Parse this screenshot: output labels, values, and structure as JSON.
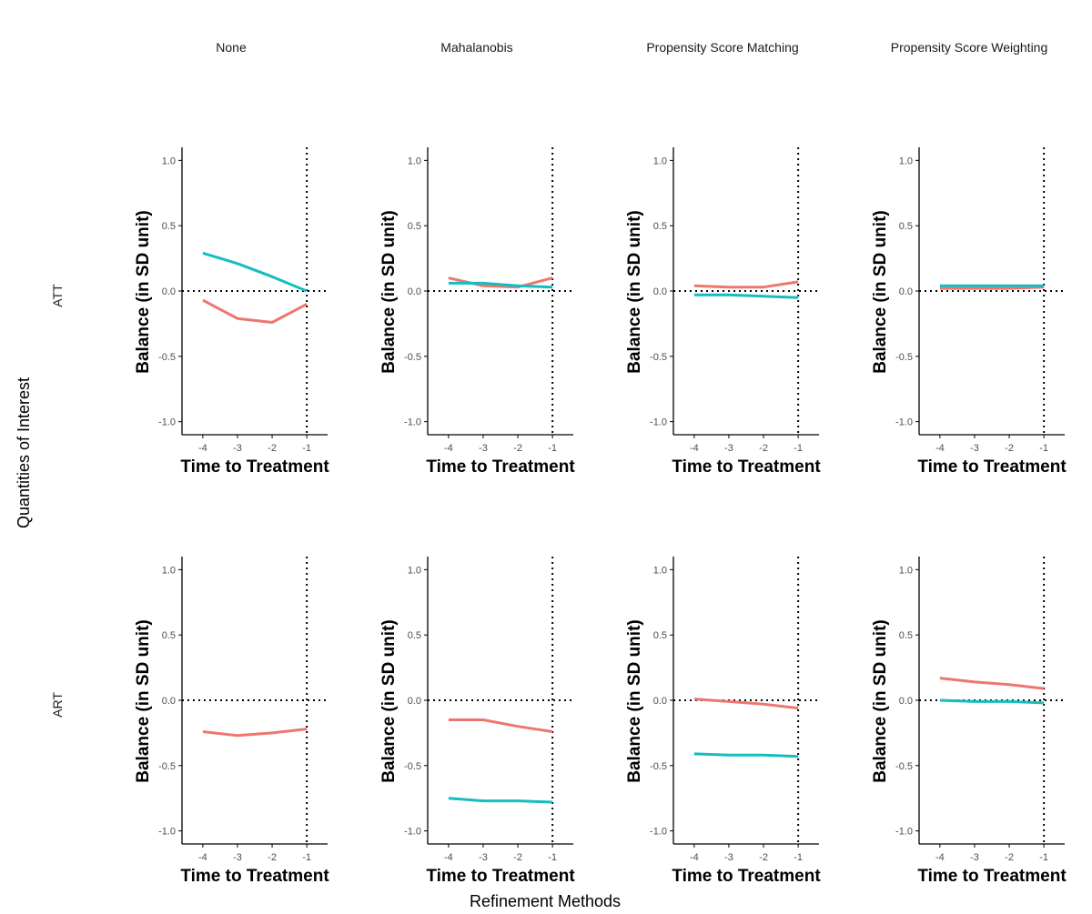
{
  "labels": {
    "row_axis_title": "Quantities of Interest",
    "col_axis_title": "Refinement Methods"
  },
  "colors": {
    "series_1": "#ED776E",
    "series_2": "#14BDBF",
    "axis": "#000000",
    "tick_text": "#4d4d4d"
  },
  "chart_data": {
    "type": "line",
    "column_labels": [
      "None",
      "Mahalanobis",
      "Propensity Score Matching",
      "Propensity Score Weighting"
    ],
    "row_labels": [
      "ATT",
      "ART"
    ],
    "xlabel": "Time to Treatment",
    "ylabel": "Balance (in SD unit)",
    "x": [
      -4,
      -3,
      -2,
      -1
    ],
    "xlim": [
      -4.6,
      -0.4
    ],
    "ylim": [
      -1.1,
      1.1
    ],
    "x_ticks": [
      -4,
      -3,
      -2,
      -1
    ],
    "y_ticks": [
      1.0,
      0.5,
      0.0,
      -0.5,
      -1.0
    ],
    "x_tick_labels": [
      "-4",
      "-3",
      "-2",
      "-1"
    ],
    "y_tick_labels": [
      "1.0",
      "0.5",
      "0.0",
      "-0.5",
      "-1.0"
    ],
    "reference_lines": {
      "horizontal_y": 0,
      "vertical_x": -1,
      "style": "dotted"
    },
    "panels": [
      {
        "row": "ATT",
        "col": "None",
        "series": [
          {
            "name": "series_1",
            "values": [
              -0.07,
              -0.21,
              -0.24,
              -0.1
            ]
          },
          {
            "name": "series_2",
            "values": [
              0.29,
              0.21,
              0.11,
              0.0
            ]
          }
        ]
      },
      {
        "row": "ATT",
        "col": "Mahalanobis",
        "series": [
          {
            "name": "series_1",
            "values": [
              0.1,
              0.04,
              0.03,
              0.1
            ]
          },
          {
            "name": "series_2",
            "values": [
              0.06,
              0.06,
              0.04,
              0.03
            ]
          }
        ]
      },
      {
        "row": "ATT",
        "col": "Propensity Score Matching",
        "series": [
          {
            "name": "series_1",
            "values": [
              0.04,
              0.03,
              0.03,
              0.07
            ]
          },
          {
            "name": "series_2",
            "values": [
              -0.03,
              -0.03,
              -0.04,
              -0.05
            ]
          }
        ]
      },
      {
        "row": "ATT",
        "col": "Propensity Score Weighting",
        "series": [
          {
            "name": "series_1",
            "values": [
              0.02,
              0.02,
              0.02,
              0.03
            ]
          },
          {
            "name": "series_2",
            "values": [
              0.04,
              0.04,
              0.04,
              0.04
            ]
          }
        ]
      },
      {
        "row": "ART",
        "col": "None",
        "series": [
          {
            "name": "series_1",
            "values": [
              -0.24,
              -0.27,
              -0.25,
              -0.22
            ]
          }
        ]
      },
      {
        "row": "ART",
        "col": "Mahalanobis",
        "series": [
          {
            "name": "series_1",
            "values": [
              -0.15,
              -0.15,
              -0.2,
              -0.24
            ]
          },
          {
            "name": "series_2",
            "values": [
              -0.75,
              -0.77,
              -0.77,
              -0.78
            ]
          }
        ]
      },
      {
        "row": "ART",
        "col": "Propensity Score Matching",
        "series": [
          {
            "name": "series_1",
            "values": [
              0.01,
              -0.01,
              -0.03,
              -0.06
            ]
          },
          {
            "name": "series_2",
            "values": [
              -0.41,
              -0.42,
              -0.42,
              -0.43
            ]
          }
        ]
      },
      {
        "row": "ART",
        "col": "Propensity Score Weighting",
        "series": [
          {
            "name": "series_1",
            "values": [
              0.17,
              0.14,
              0.12,
              0.09
            ]
          },
          {
            "name": "series_2",
            "values": [
              0.0,
              -0.01,
              -0.01,
              -0.02
            ]
          }
        ]
      }
    ]
  }
}
